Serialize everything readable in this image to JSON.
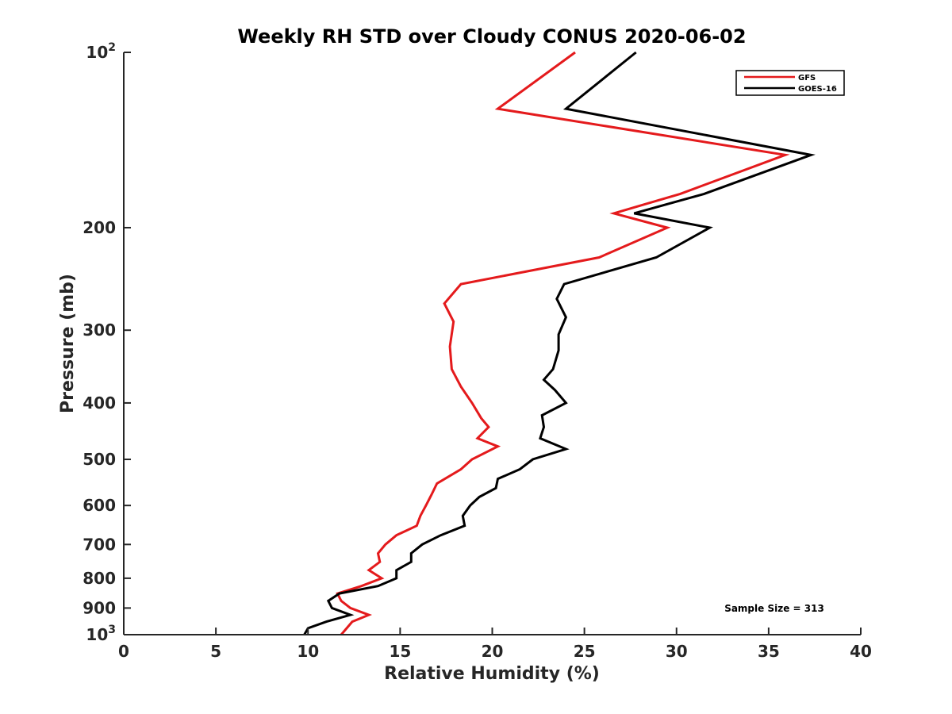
{
  "chart_data": {
    "type": "line",
    "title": "Weekly RH STD over Cloudy CONUS 2020-06-02",
    "xlabel": "Relative Humidity (%)",
    "ylabel": "Pressure (mb)",
    "xlim": [
      0,
      40
    ],
    "ylim": [
      100,
      1000
    ],
    "yscale": "log",
    "y_reversed": true,
    "x_ticks": [
      "0",
      "5",
      "10",
      "15",
      "20",
      "25",
      "30",
      "35",
      "40"
    ],
    "y_ticks": [
      {
        "value": 100,
        "label": "10",
        "sup": "2"
      },
      {
        "value": 200,
        "label": "200"
      },
      {
        "value": 300,
        "label": "300"
      },
      {
        "value": 400,
        "label": "400"
      },
      {
        "value": 500,
        "label": "500"
      },
      {
        "value": 600,
        "label": "600"
      },
      {
        "value": 700,
        "label": "700"
      },
      {
        "value": 800,
        "label": "800"
      },
      {
        "value": 900,
        "label": "900"
      },
      {
        "value": 1000,
        "label": "10",
        "sup": "3"
      }
    ],
    "legend_position": "top-right",
    "annotation": "Sample Size = 313",
    "series": [
      {
        "name": "GFS",
        "color": "#e41a1c",
        "points": [
          [
            24.5,
            100
          ],
          [
            20.3,
            125
          ],
          [
            35.9,
            150
          ],
          [
            30.2,
            175
          ],
          [
            26.6,
            189
          ],
          [
            29.5,
            200
          ],
          [
            25.8,
            225
          ],
          [
            18.3,
            250
          ],
          [
            17.4,
            270
          ],
          [
            17.9,
            290
          ],
          [
            17.7,
            320
          ],
          [
            17.8,
            350
          ],
          [
            18.3,
            375
          ],
          [
            18.9,
            400
          ],
          [
            19.4,
            425
          ],
          [
            19.8,
            440
          ],
          [
            19.2,
            460
          ],
          [
            20.3,
            475
          ],
          [
            18.9,
            500
          ],
          [
            18.3,
            520
          ],
          [
            17.0,
            550
          ],
          [
            16.7,
            575
          ],
          [
            16.4,
            600
          ],
          [
            16.1,
            625
          ],
          [
            15.9,
            650
          ],
          [
            14.8,
            675
          ],
          [
            14.2,
            700
          ],
          [
            13.8,
            725
          ],
          [
            13.9,
            750
          ],
          [
            13.3,
            775
          ],
          [
            14.0,
            800
          ],
          [
            12.9,
            825
          ],
          [
            11.6,
            850
          ],
          [
            11.8,
            875
          ],
          [
            12.3,
            900
          ],
          [
            13.3,
            925
          ],
          [
            12.4,
            950
          ],
          [
            11.8,
            1000
          ]
        ]
      },
      {
        "name": "GOES-16",
        "color": "#000000",
        "points": [
          [
            27.8,
            100
          ],
          [
            24.0,
            125
          ],
          [
            37.3,
            150
          ],
          [
            31.5,
            175
          ],
          [
            27.7,
            189
          ],
          [
            31.8,
            200
          ],
          [
            28.9,
            225
          ],
          [
            23.9,
            250
          ],
          [
            23.5,
            265
          ],
          [
            24.0,
            285
          ],
          [
            23.6,
            305
          ],
          [
            23.6,
            325
          ],
          [
            23.3,
            350
          ],
          [
            22.8,
            365
          ],
          [
            23.4,
            380
          ],
          [
            24.0,
            400
          ],
          [
            22.7,
            420
          ],
          [
            22.8,
            440
          ],
          [
            22.6,
            460
          ],
          [
            24.0,
            480
          ],
          [
            22.2,
            500
          ],
          [
            21.5,
            520
          ],
          [
            20.3,
            540
          ],
          [
            20.2,
            560
          ],
          [
            19.3,
            580
          ],
          [
            18.8,
            600
          ],
          [
            18.4,
            625
          ],
          [
            18.5,
            650
          ],
          [
            17.2,
            675
          ],
          [
            16.2,
            700
          ],
          [
            15.6,
            725
          ],
          [
            15.6,
            750
          ],
          [
            14.8,
            775
          ],
          [
            14.8,
            800
          ],
          [
            13.8,
            825
          ],
          [
            11.7,
            850
          ],
          [
            11.1,
            875
          ],
          [
            11.3,
            900
          ],
          [
            12.3,
            925
          ],
          [
            11.0,
            950
          ],
          [
            10.0,
            975
          ],
          [
            9.8,
            1000
          ]
        ]
      }
    ]
  }
}
